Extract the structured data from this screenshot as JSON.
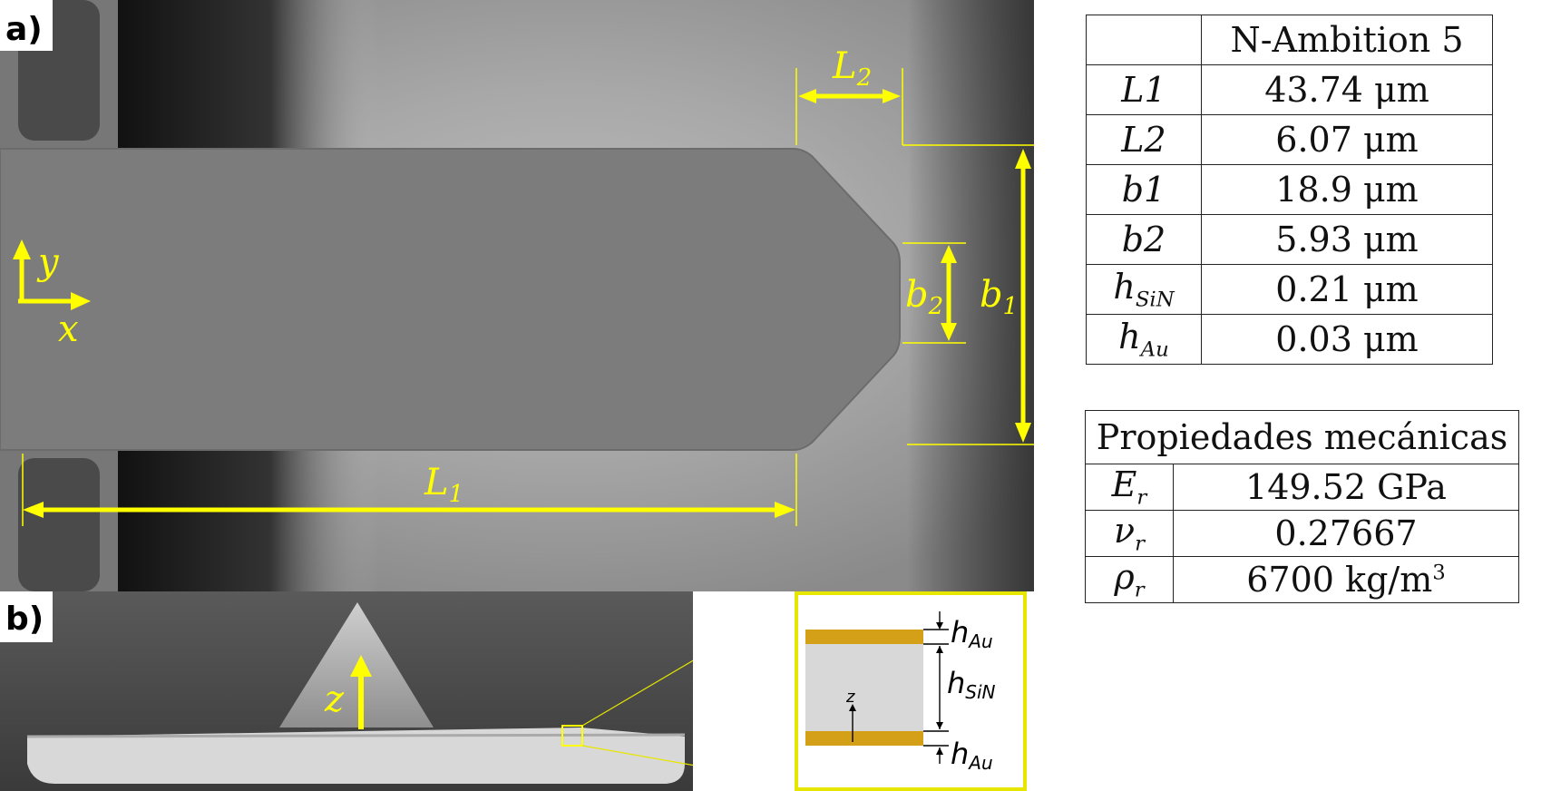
{
  "panel_a": {
    "label": "a)",
    "dim_labels": {
      "L1": "L",
      "L1_sub": "1",
      "L2": "L",
      "L2_sub": "2",
      "b1": "b",
      "b1_sub": "1",
      "b2": "b",
      "b2_sub": "2"
    },
    "axes": {
      "y": "y",
      "x": "x"
    }
  },
  "panel_b": {
    "label": "b)",
    "axis_z": "z",
    "inset": {
      "h_au_top": "h",
      "h_au_top_sub": "Au",
      "h_sin": "h",
      "h_sin_sub": "SiN",
      "h_au_bottom": "h",
      "h_au_bottom_sub": "Au",
      "z": "z"
    }
  },
  "table_geometry": {
    "header": "N-Ambition 5",
    "rows": [
      {
        "symbol": "L1",
        "sub": "",
        "value": "43.74 μm"
      },
      {
        "symbol": "L2",
        "sub": "",
        "value": "6.07 μm"
      },
      {
        "symbol": "b1",
        "sub": "",
        "value": "18.9 μm"
      },
      {
        "symbol": "b2",
        "sub": "",
        "value": "5.93 μm"
      },
      {
        "symbol": "h",
        "sub": "SiN",
        "value": "0.21 μm"
      },
      {
        "symbol": "h",
        "sub": "Au",
        "value": "0.03 μm"
      }
    ]
  },
  "table_mech": {
    "header": "Propiedades mecánicas",
    "rows": [
      {
        "symbol": "E",
        "sub": "r",
        "value": "149.52 GPa"
      },
      {
        "symbol": "ν",
        "sub": "r",
        "value": "0.27667"
      },
      {
        "symbol": "ρ",
        "sub": "r",
        "value": "6700 kg/m",
        "sup": "3"
      }
    ]
  },
  "colors": {
    "annotation": "#ffff00",
    "gold_layer": "#d4a017",
    "inset_frame": "#e6e600"
  }
}
